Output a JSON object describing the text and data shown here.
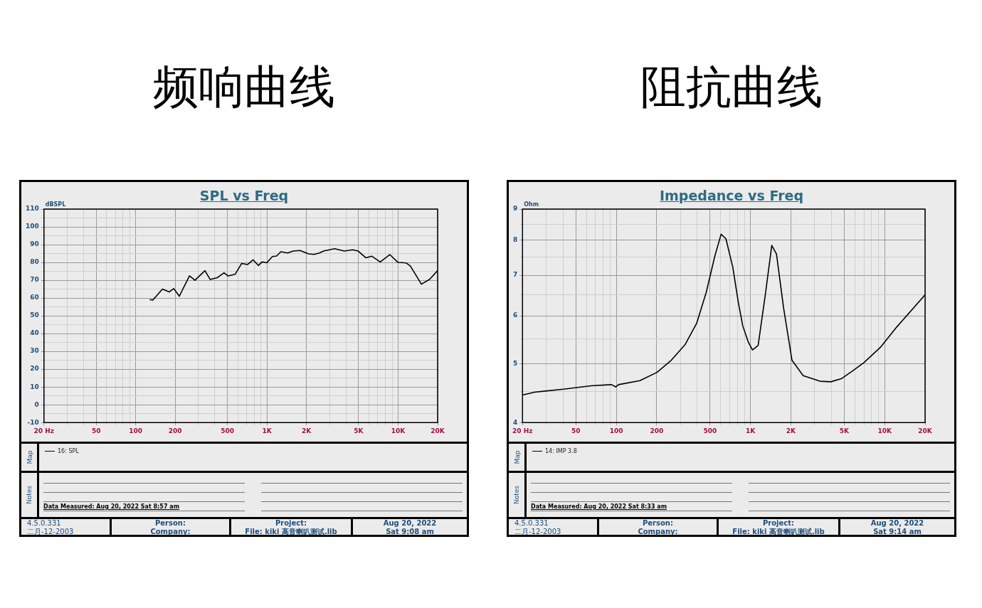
{
  "chart_data": [
    {
      "type": "line",
      "title": "频响曲线",
      "subtitle": "SPL vs Freq",
      "ylabel": "dBSPL",
      "log": "x",
      "grid": true,
      "legend": "bottom",
      "xlim": [
        20,
        20000
      ],
      "ylim": [
        -10,
        110
      ],
      "xticks": [
        {
          "value": 20,
          "label": "20 Hz"
        },
        {
          "value": 30,
          "label": null
        },
        {
          "value": 40,
          "label": null
        },
        50,
        {
          "value": 60,
          "label": null
        },
        {
          "value": 70,
          "label": null
        },
        {
          "value": 80,
          "label": null
        },
        {
          "value": 90,
          "label": null
        },
        100,
        200,
        {
          "value": 300,
          "label": null
        },
        {
          "value": 400,
          "label": null
        },
        500,
        {
          "value": 600,
          "label": null
        },
        {
          "value": 700,
          "label": null
        },
        {
          "value": 800,
          "label": null
        },
        {
          "value": 900,
          "label": null
        },
        {
          "value": 1000,
          "label": "1K"
        },
        {
          "value": 2000,
          "label": "2K"
        },
        {
          "value": 3000,
          "label": null
        },
        {
          "value": 4000,
          "label": null
        },
        {
          "value": 5000,
          "label": "5K"
        },
        {
          "value": 6000,
          "label": null
        },
        {
          "value": 7000,
          "label": null
        },
        {
          "value": 8000,
          "label": null
        },
        {
          "value": 9000,
          "label": null
        },
        {
          "value": 10000,
          "label": "10K"
        },
        {
          "value": 20000,
          "label": "20K"
        }
      ],
      "yticks": [
        -10,
        {
          "value": -5,
          "label": null
        },
        0,
        {
          "value": 5,
          "label": null
        },
        10,
        {
          "value": 15,
          "label": null
        },
        20,
        {
          "value": 25,
          "label": null
        },
        30,
        {
          "value": 35,
          "label": null
        },
        40,
        {
          "value": 45,
          "label": null
        },
        50,
        {
          "value": 55,
          "label": null
        },
        60,
        {
          "value": 65,
          "label": null
        },
        70,
        {
          "value": 75,
          "label": null
        },
        80,
        {
          "value": 85,
          "label": null
        },
        90,
        {
          "value": 95,
          "label": null
        },
        100,
        {
          "value": 105,
          "label": null
        },
        110
      ],
      "series": [
        {
          "name": "16: SPL",
          "color": "#000000",
          "x": [
            128,
            135,
            160,
            180,
            195,
            215,
            257,
            283,
            337,
            370,
            418,
            471,
            506,
            572,
            641,
            711,
            784,
            860,
            920,
            999,
            1101,
            1186,
            1276,
            1440,
            1586,
            1791,
            2073,
            2282,
            2516,
            2703,
            3281,
            3890,
            4500,
            4960,
            5680,
            6310,
            7300,
            8640,
            9990,
            11540,
            12400,
            15040,
            17330,
            20000
          ],
          "values": [
            59.1,
            58.8,
            65,
            63.4,
            65.3,
            61,
            72.5,
            70,
            75.4,
            70.4,
            71.4,
            74.2,
            72.4,
            73.3,
            79.4,
            78.8,
            81.5,
            78.3,
            80.3,
            79.8,
            83.3,
            83.6,
            86,
            85.3,
            86.4,
            86.7,
            84.8,
            84.5,
            85.3,
            86.4,
            87.7,
            86.4,
            87.1,
            86.4,
            82.6,
            83.5,
            80.3,
            84.4,
            80,
            79.7,
            78,
            67.8,
            70.4,
            75.4
          ]
        }
      ],
      "annotations": [
        "Map",
        "Notes",
        "Data Measured: Aug 20, 2022  Sat  8:57 am",
        "4.5.0.331",
        "二月-12-2003",
        "Person:",
        "Company:",
        "Project:",
        "File: kiki 高音喇叭测试.lib",
        "Aug 20, 2022",
        "Sat  9:08 am"
      ]
    },
    {
      "type": "line",
      "title": "阻抗曲线",
      "subtitle": "Impedance vs Freq",
      "ylabel": "Ohm",
      "log": "xy",
      "grid": true,
      "legend": "bottom",
      "xlim": [
        20,
        20000
      ],
      "ylim": [
        4,
        9
      ],
      "xticks": [
        {
          "value": 20,
          "label": "20 Hz"
        },
        {
          "value": 30,
          "label": null
        },
        {
          "value": 40,
          "label": null
        },
        50,
        {
          "value": 60,
          "label": null
        },
        {
          "value": 70,
          "label": null
        },
        {
          "value": 80,
          "label": null
        },
        {
          "value": 90,
          "label": null
        },
        100,
        200,
        {
          "value": 300,
          "label": null
        },
        {
          "value": 400,
          "label": null
        },
        500,
        {
          "value": 600,
          "label": null
        },
        {
          "value": 700,
          "label": null
        },
        {
          "value": 800,
          "label": null
        },
        {
          "value": 900,
          "label": null
        },
        {
          "value": 1000,
          "label": "1K"
        },
        {
          "value": 2000,
          "label": "2K"
        },
        {
          "value": 3000,
          "label": null
        },
        {
          "value": 4000,
          "label": null
        },
        {
          "value": 5000,
          "label": "5K"
        },
        {
          "value": 6000,
          "label": null
        },
        {
          "value": 7000,
          "label": null
        },
        {
          "value": 8000,
          "label": null
        },
        {
          "value": 9000,
          "label": null
        },
        {
          "value": 10000,
          "label": "10K"
        },
        {
          "value": 20000,
          "label": "20K"
        }
      ],
      "yticks": [
        4,
        {
          "value": 4.5,
          "label": null
        },
        5,
        {
          "value": 5.5,
          "label": null
        },
        6,
        {
          "value": 6.5,
          "label": null
        },
        7,
        {
          "value": 7.5,
          "label": null
        },
        8,
        {
          "value": 8.5,
          "label": null
        },
        9
      ],
      "series": [
        {
          "name": "14: IMP 3.8",
          "color": "#000000",
          "x": [
            20,
            24.6,
            40.5,
            65,
            92,
            99,
            104,
            150,
            201,
            255,
            326,
            397,
            469,
            541,
            604,
            656,
            738,
            812,
            875,
            963,
            1035,
            1140,
            1290,
            1441,
            1562,
            1765,
            2037,
            2468,
            3293,
            3973,
            4795,
            5787,
            6984,
            9270,
            12300,
            20000
          ],
          "values": [
            4.44,
            4.49,
            4.54,
            4.6,
            4.62,
            4.58,
            4.62,
            4.69,
            4.84,
            5.06,
            5.38,
            5.83,
            6.57,
            7.51,
            8.18,
            8.04,
            7.22,
            6.31,
            5.78,
            5.43,
            5.27,
            5.36,
            6.5,
            7.84,
            7.59,
            6.18,
            5.07,
            4.78,
            4.68,
            4.67,
            4.73,
            4.87,
            5.02,
            5.32,
            5.75,
            6.5
          ]
        }
      ],
      "annotations": [
        "Map",
        "Notes",
        "Data Measured: Aug 20, 2022  Sat  8:33 am",
        "4.5.0.331",
        "二月-12-2003",
        "Person:",
        "Company:",
        "Project:",
        "File: kiki 高音喇叭测试.lib",
        "Aug 20, 2022",
        "Sat  9:14 am"
      ]
    }
  ]
}
